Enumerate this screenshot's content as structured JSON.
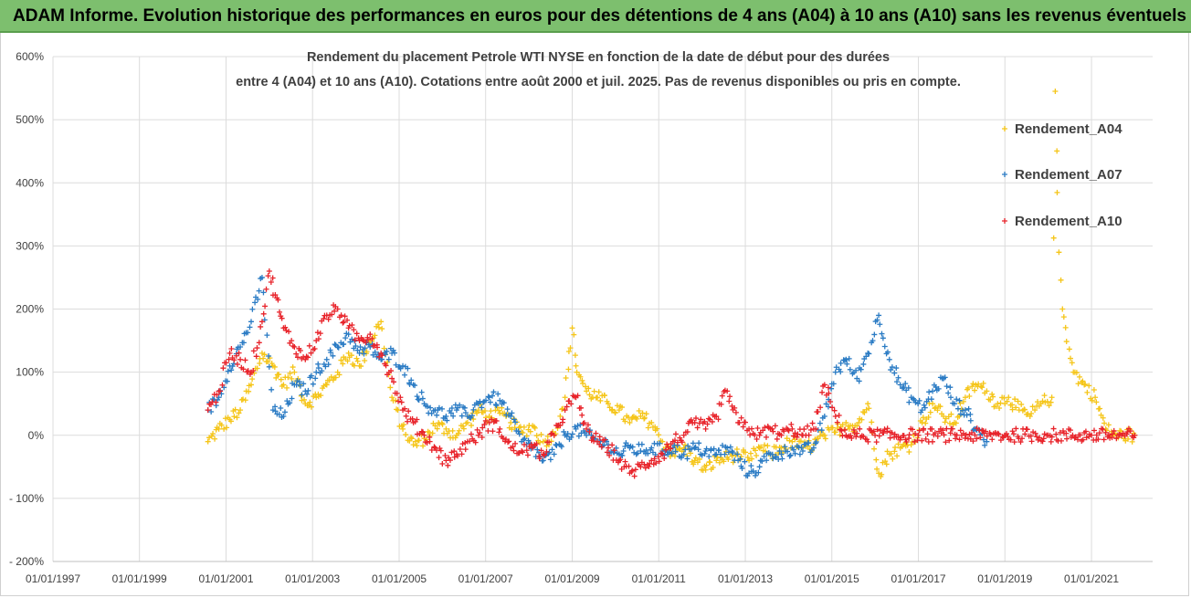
{
  "banner": {
    "text": "ADAM Informe. Evolution historique des performances en euros pour des détentions de 4 ans (A04) à 10 ans (A10) sans les revenus éventuels"
  },
  "colors": {
    "banner_bg": "#7dbf6e",
    "A04": "#f5c518",
    "A07": "#2a7bc4",
    "A10": "#e8232a",
    "grid": "#dcdcdc"
  },
  "chart_data": {
    "type": "scatter",
    "title_lines": [
      "Rendement du placement Petrole WTI NYSE en fonction de la date de début pour des durées",
      "entre 4 (A04) et 10 ans (A10).  Cotations entre août 2000  et juil. 2025.  Pas de revenus disponibles ou pris en compte."
    ],
    "xlabel": "",
    "ylabel": "",
    "x_ticks": [
      "01/01/1997",
      "01/01/1999",
      "01/01/2001",
      "01/01/2003",
      "01/01/2005",
      "01/01/2007",
      "01/01/2009",
      "01/01/2011",
      "01/01/2013",
      "01/01/2015",
      "01/01/2017",
      "01/01/2019",
      "01/01/2021"
    ],
    "xlim": [
      "1997-01-01",
      "2022-06-01"
    ],
    "y_ticks": [
      "600%",
      "500%",
      "400%",
      "300%",
      "200%",
      "100%",
      "0%",
      "- 100%",
      "- 200%"
    ],
    "y_tick_values": [
      600,
      500,
      400,
      300,
      200,
      100,
      0,
      -100,
      -200
    ],
    "ylim": [
      -200,
      600
    ],
    "grid": true,
    "marker": "+",
    "legend_position": "right",
    "series": [
      {
        "name": "Rendement_A04",
        "color": "#f5c518",
        "points": [
          [
            "2000-08-01",
            -10
          ],
          [
            "2000-11-01",
            10
          ],
          [
            "2001-02-01",
            25
          ],
          [
            "2001-05-01",
            40
          ],
          [
            "2001-08-01",
            80
          ],
          [
            "2001-11-01",
            130
          ],
          [
            "2002-02-01",
            110
          ],
          [
            "2002-05-01",
            80
          ],
          [
            "2002-08-01",
            100
          ],
          [
            "2002-11-01",
            50
          ],
          [
            "2003-02-01",
            60
          ],
          [
            "2003-05-01",
            80
          ],
          [
            "2003-08-01",
            100
          ],
          [
            "2003-11-01",
            130
          ],
          [
            "2004-02-01",
            110
          ],
          [
            "2004-05-01",
            150
          ],
          [
            "2004-08-01",
            180
          ],
          [
            "2004-11-01",
            60
          ],
          [
            "2005-02-01",
            10
          ],
          [
            "2005-05-01",
            -15
          ],
          [
            "2005-08-01",
            -5
          ],
          [
            "2005-11-01",
            15
          ],
          [
            "2006-02-01",
            10
          ],
          [
            "2006-05-01",
            0
          ],
          [
            "2006-08-01",
            20
          ],
          [
            "2006-11-01",
            40
          ],
          [
            "2007-02-01",
            30
          ],
          [
            "2007-05-01",
            35
          ],
          [
            "2007-08-01",
            20
          ],
          [
            "2007-11-01",
            5
          ],
          [
            "2008-02-01",
            15
          ],
          [
            "2008-05-01",
            -10
          ],
          [
            "2008-08-01",
            0
          ],
          [
            "2008-11-01",
            60
          ],
          [
            "2009-01-01",
            170
          ],
          [
            "2009-02-01",
            110
          ],
          [
            "2009-05-01",
            70
          ],
          [
            "2009-08-01",
            60
          ],
          [
            "2009-11-01",
            50
          ],
          [
            "2010-02-01",
            40
          ],
          [
            "2010-05-01",
            20
          ],
          [
            "2010-08-01",
            30
          ],
          [
            "2010-11-01",
            20
          ],
          [
            "2011-02-01",
            -10
          ],
          [
            "2011-05-01",
            -30
          ],
          [
            "2011-08-01",
            -20
          ],
          [
            "2011-11-01",
            -40
          ],
          [
            "2012-02-01",
            -55
          ],
          [
            "2012-05-01",
            -40
          ],
          [
            "2012-08-01",
            -35
          ],
          [
            "2012-11-01",
            -30
          ],
          [
            "2013-02-01",
            -40
          ],
          [
            "2013-05-01",
            -20
          ],
          [
            "2013-08-01",
            -30
          ],
          [
            "2013-11-01",
            -20
          ],
          [
            "2014-02-01",
            -10
          ],
          [
            "2014-05-01",
            -20
          ],
          [
            "2014-08-01",
            -15
          ],
          [
            "2014-11-01",
            0
          ],
          [
            "2015-02-01",
            5
          ],
          [
            "2015-05-01",
            20
          ],
          [
            "2015-08-01",
            15
          ],
          [
            "2015-11-01",
            50
          ],
          [
            "2016-02-01",
            -60
          ],
          [
            "2016-05-01",
            -30
          ],
          [
            "2016-08-01",
            -20
          ],
          [
            "2016-11-01",
            -15
          ],
          [
            "2017-02-01",
            20
          ],
          [
            "2017-05-01",
            50
          ],
          [
            "2017-08-01",
            30
          ],
          [
            "2017-11-01",
            20
          ],
          [
            "2018-02-01",
            60
          ],
          [
            "2018-05-01",
            80
          ],
          [
            "2018-08-01",
            70
          ],
          [
            "2018-11-01",
            50
          ],
          [
            "2019-02-01",
            60
          ],
          [
            "2019-05-01",
            40
          ],
          [
            "2019-08-01",
            30
          ],
          [
            "2019-11-01",
            50
          ],
          [
            "2020-02-01",
            60
          ],
          [
            "2020-04-01",
            290
          ],
          [
            "2020-05-01",
            200
          ],
          [
            "2020-08-01",
            100
          ],
          [
            "2020-11-01",
            80
          ],
          [
            "2021-02-01",
            60
          ],
          [
            "2021-05-01",
            10
          ],
          [
            "2021-08-01",
            0
          ],
          [
            "2022-01-01",
            0
          ],
          [
            "2020-03-01",
            545
          ]
        ]
      },
      {
        "name": "Rendement_A07",
        "color": "#2a7bc4",
        "points": [
          [
            "2000-08-01",
            40
          ],
          [
            "2000-11-01",
            60
          ],
          [
            "2001-02-01",
            110
          ],
          [
            "2001-05-01",
            140
          ],
          [
            "2001-08-01",
            180
          ],
          [
            "2001-11-01",
            250
          ],
          [
            "2002-02-01",
            40
          ],
          [
            "2002-05-01",
            30
          ],
          [
            "2002-08-01",
            80
          ],
          [
            "2002-11-01",
            70
          ],
          [
            "2003-02-01",
            100
          ],
          [
            "2003-05-01",
            120
          ],
          [
            "2003-08-01",
            140
          ],
          [
            "2003-11-01",
            160
          ],
          [
            "2004-02-01",
            130
          ],
          [
            "2004-05-01",
            140
          ],
          [
            "2004-08-01",
            120
          ],
          [
            "2004-11-01",
            130
          ],
          [
            "2005-02-01",
            110
          ],
          [
            "2005-05-01",
            80
          ],
          [
            "2005-08-01",
            50
          ],
          [
            "2005-11-01",
            40
          ],
          [
            "2006-02-01",
            30
          ],
          [
            "2006-05-01",
            40
          ],
          [
            "2006-08-01",
            30
          ],
          [
            "2006-11-01",
            50
          ],
          [
            "2007-02-01",
            60
          ],
          [
            "2007-05-01",
            55
          ],
          [
            "2007-08-01",
            30
          ],
          [
            "2007-11-01",
            -10
          ],
          [
            "2008-02-01",
            -20
          ],
          [
            "2008-05-01",
            -40
          ],
          [
            "2008-08-01",
            -30
          ],
          [
            "2008-11-01",
            0
          ],
          [
            "2009-02-01",
            10
          ],
          [
            "2009-05-01",
            0
          ],
          [
            "2009-08-01",
            -10
          ],
          [
            "2009-11-01",
            -15
          ],
          [
            "2010-02-01",
            -30
          ],
          [
            "2010-05-01",
            -20
          ],
          [
            "2010-08-01",
            -25
          ],
          [
            "2010-11-01",
            -20
          ],
          [
            "2011-02-01",
            -25
          ],
          [
            "2011-05-01",
            -20
          ],
          [
            "2011-08-01",
            -30
          ],
          [
            "2011-11-01",
            -20
          ],
          [
            "2012-02-01",
            -25
          ],
          [
            "2012-05-01",
            -30
          ],
          [
            "2012-08-01",
            -20
          ],
          [
            "2012-11-01",
            -40
          ],
          [
            "2013-02-01",
            -60
          ],
          [
            "2013-05-01",
            -50
          ],
          [
            "2013-08-01",
            -30
          ],
          [
            "2013-11-01",
            -30
          ],
          [
            "2014-02-01",
            -20
          ],
          [
            "2014-05-01",
            -25
          ],
          [
            "2014-08-01",
            -20
          ],
          [
            "2014-11-01",
            30
          ],
          [
            "2015-02-01",
            100
          ],
          [
            "2015-05-01",
            120
          ],
          [
            "2015-08-01",
            90
          ],
          [
            "2015-11-01",
            130
          ],
          [
            "2016-02-01",
            190
          ],
          [
            "2016-05-01",
            120
          ],
          [
            "2016-08-01",
            80
          ],
          [
            "2016-11-01",
            60
          ],
          [
            "2017-02-01",
            40
          ],
          [
            "2017-05-01",
            70
          ],
          [
            "2017-08-01",
            90
          ],
          [
            "2017-11-01",
            50
          ],
          [
            "2018-02-01",
            40
          ],
          [
            "2018-05-01",
            10
          ],
          [
            "2018-08-01",
            -10
          ]
        ]
      },
      {
        "name": "Rendement_A10",
        "color": "#e8232a",
        "points": [
          [
            "2000-08-01",
            40
          ],
          [
            "2000-11-01",
            70
          ],
          [
            "2001-02-01",
            130
          ],
          [
            "2001-05-01",
            120
          ],
          [
            "2001-08-01",
            100
          ],
          [
            "2001-11-01",
            180
          ],
          [
            "2002-01-01",
            260
          ],
          [
            "2002-05-01",
            170
          ],
          [
            "2002-08-01",
            140
          ],
          [
            "2002-11-01",
            120
          ],
          [
            "2003-02-01",
            150
          ],
          [
            "2003-05-01",
            190
          ],
          [
            "2003-08-01",
            200
          ],
          [
            "2003-11-01",
            170
          ],
          [
            "2004-02-01",
            150
          ],
          [
            "2004-05-01",
            160
          ],
          [
            "2004-08-01",
            130
          ],
          [
            "2004-11-01",
            90
          ],
          [
            "2005-02-01",
            40
          ],
          [
            "2005-05-01",
            20
          ],
          [
            "2005-08-01",
            0
          ],
          [
            "2005-11-01",
            -20
          ],
          [
            "2006-02-01",
            -40
          ],
          [
            "2006-05-01",
            -30
          ],
          [
            "2006-08-01",
            -10
          ],
          [
            "2006-11-01",
            0
          ],
          [
            "2007-02-01",
            20
          ],
          [
            "2007-05-01",
            10
          ],
          [
            "2007-08-01",
            -20
          ],
          [
            "2007-11-01",
            -25
          ],
          [
            "2008-02-01",
            -20
          ],
          [
            "2008-05-01",
            -30
          ],
          [
            "2008-08-01",
            0
          ],
          [
            "2008-11-01",
            40
          ],
          [
            "2009-02-01",
            60
          ],
          [
            "2009-05-01",
            10
          ],
          [
            "2009-08-01",
            -10
          ],
          [
            "2009-11-01",
            -20
          ],
          [
            "2010-02-01",
            -40
          ],
          [
            "2010-05-01",
            -60
          ],
          [
            "2010-08-01",
            -50
          ],
          [
            "2010-11-01",
            -40
          ],
          [
            "2011-02-01",
            -30
          ],
          [
            "2011-05-01",
            -10
          ],
          [
            "2011-08-01",
            0
          ],
          [
            "2011-11-01",
            20
          ],
          [
            "2012-02-01",
            10
          ],
          [
            "2012-05-01",
            30
          ],
          [
            "2012-08-01",
            70
          ],
          [
            "2012-11-01",
            20
          ],
          [
            "2013-02-01",
            10
          ],
          [
            "2013-05-01",
            0
          ],
          [
            "2013-08-01",
            10
          ],
          [
            "2013-11-01",
            0
          ],
          [
            "2014-02-01",
            10
          ],
          [
            "2014-05-01",
            0
          ],
          [
            "2014-08-01",
            10
          ],
          [
            "2014-11-01",
            80
          ],
          [
            "2015-02-01",
            30
          ],
          [
            "2015-05-01",
            0
          ],
          [
            "2016-01-01",
            0
          ],
          [
            "2017-01-01",
            0
          ],
          [
            "2018-01-01",
            0
          ],
          [
            "2019-01-01",
            0
          ],
          [
            "2020-01-01",
            0
          ],
          [
            "2021-01-01",
            0
          ],
          [
            "2022-01-01",
            0
          ]
        ]
      }
    ]
  }
}
